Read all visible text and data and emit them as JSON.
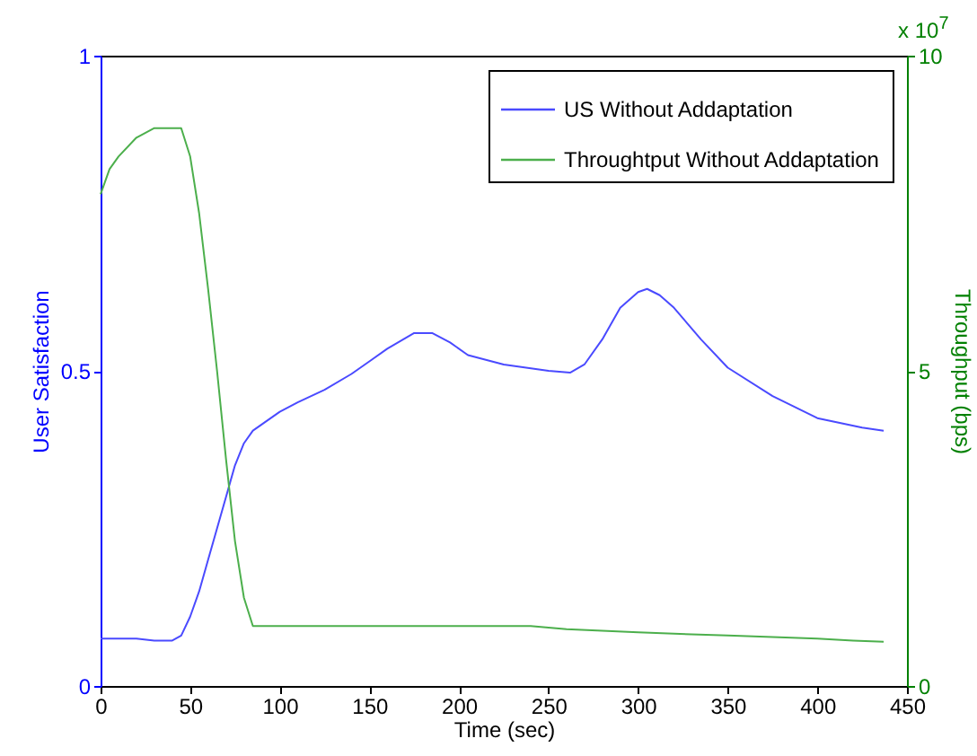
{
  "chart_data": {
    "type": "line",
    "xlabel": "Time (sec)",
    "ylabel": "User Satisfaction",
    "y2label": "Throughput (bps)",
    "annotations": [
      "x 10$^{7}$"
    ],
    "xlim": [
      0,
      450
    ],
    "xticks": [
      0,
      50,
      100,
      150,
      200,
      250,
      300,
      350,
      400,
      450
    ],
    "ylim": [
      0,
      1
    ],
    "yticks": [
      0,
      0.5,
      1
    ],
    "y2lim": [
      0,
      10
    ],
    "y2ticks": [
      0,
      5,
      10
    ],
    "legend": "top right",
    "grid": false,
    "line_style": "solid",
    "series": [
      {
        "name": "US Without Addaptation",
        "color": "#4a4aff",
        "x": [
          0,
          20,
          30,
          40,
          45,
          50,
          55,
          60,
          65,
          70,
          75,
          80,
          85,
          90,
          100,
          110,
          125,
          140,
          150,
          160,
          175,
          185,
          195,
          205,
          225,
          250,
          262,
          270,
          280,
          290,
          300,
          305,
          312,
          320,
          335,
          350,
          375,
          400,
          425,
          437
        ],
        "values": [
          0.075,
          0.075,
          0.072,
          0.072,
          0.08,
          0.11,
          0.15,
          0.2,
          0.25,
          0.3,
          0.35,
          0.385,
          0.405,
          0.415,
          0.435,
          0.45,
          0.47,
          0.495,
          0.515,
          0.535,
          0.56,
          0.56,
          0.545,
          0.525,
          0.51,
          0.5,
          0.497,
          0.51,
          0.55,
          0.6,
          0.625,
          0.63,
          0.62,
          0.6,
          0.55,
          0.505,
          0.46,
          0.425,
          0.41,
          0.405
        ]
      },
      {
        "name": "Throughtput Without Addaptation",
        "color": "#4caf4c",
        "axis": "y2",
        "x": [
          0,
          5,
          10,
          20,
          30,
          40,
          45,
          50,
          55,
          60,
          65,
          70,
          75,
          80,
          85,
          100,
          150,
          200,
          240,
          260,
          300,
          350,
          400,
          420,
          437
        ],
        "values": [
          7.8,
          8.2,
          8.4,
          8.7,
          8.85,
          8.85,
          8.85,
          8.4,
          7.5,
          6.3,
          5.0,
          3.6,
          2.3,
          1.4,
          0.95,
          0.95,
          0.95,
          0.95,
          0.95,
          0.9,
          0.85,
          0.8,
          0.75,
          0.72,
          0.7
        ]
      }
    ]
  }
}
